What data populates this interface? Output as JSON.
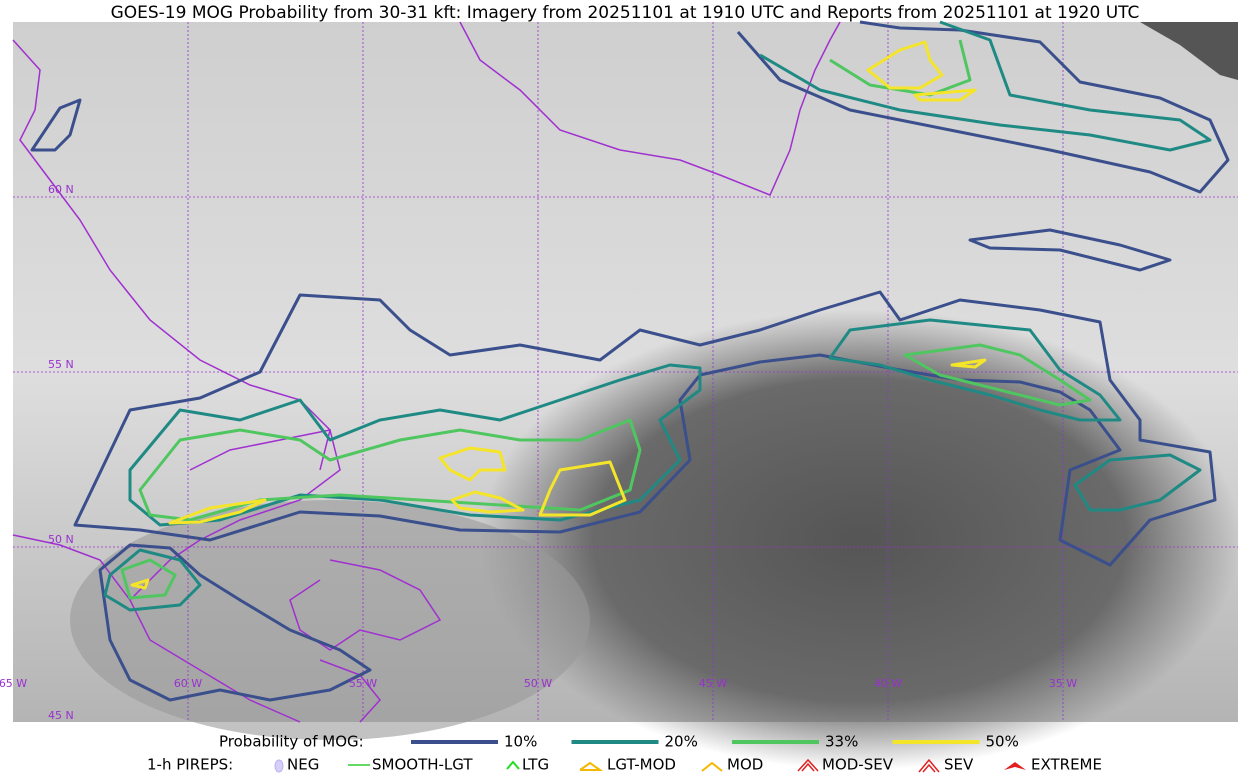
{
  "title": "GOES-19 MOG Probability from 30-31 kft: Imagery from 20251101 at 1910 UTC and Reports from 20251101 at 1920 UTC",
  "grid_labels": {
    "lat": [
      "60 N",
      "55 N",
      "50 N",
      "45 N"
    ],
    "lon": [
      "65 W",
      "60 W",
      "55 W",
      "50 W",
      "45 W",
      "40 W",
      "35 W"
    ]
  },
  "legend": {
    "probability": {
      "label": "Probability of MOG:",
      "items": [
        {
          "label": "10%",
          "color": "#3a4f8c"
        },
        {
          "label": "20%",
          "color": "#1f8a84"
        },
        {
          "label": "33%",
          "color": "#4fc660"
        },
        {
          "label": "50%",
          "color": "#f5e52a"
        }
      ]
    },
    "pireps": {
      "label": "1-h PIREPS:",
      "items": [
        "NEG",
        "SMOOTH-LGT",
        "LTG",
        "LGT-MOD",
        "MOD",
        "MOD-SEV",
        "SEV",
        "EXTREME"
      ]
    }
  }
}
